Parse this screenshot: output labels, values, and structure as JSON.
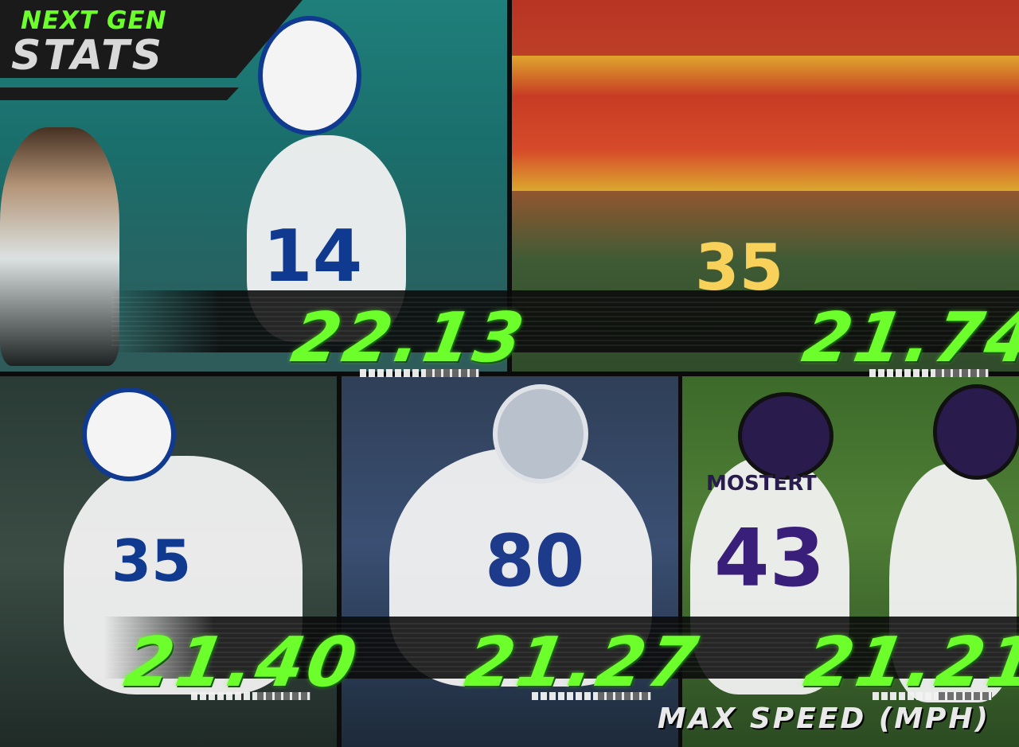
{
  "header": {
    "brand_line1": "NEXT GEN",
    "brand_line2": "STATS"
  },
  "players": [
    {
      "speed": "22.13",
      "jersey": "14"
    },
    {
      "speed": "21.74",
      "jersey": "35"
    },
    {
      "speed": "21.40",
      "jersey": "35"
    },
    {
      "speed": "21.27",
      "jersey": "80"
    },
    {
      "speed": "21.21",
      "jersey": "43",
      "name_on_back": "MOSTERT"
    }
  ],
  "footer": {
    "label": "MAX SPEED (MPH)"
  },
  "colors": {
    "accent_green": "#6cff2c",
    "strip_dark": "#0a0a0a"
  }
}
